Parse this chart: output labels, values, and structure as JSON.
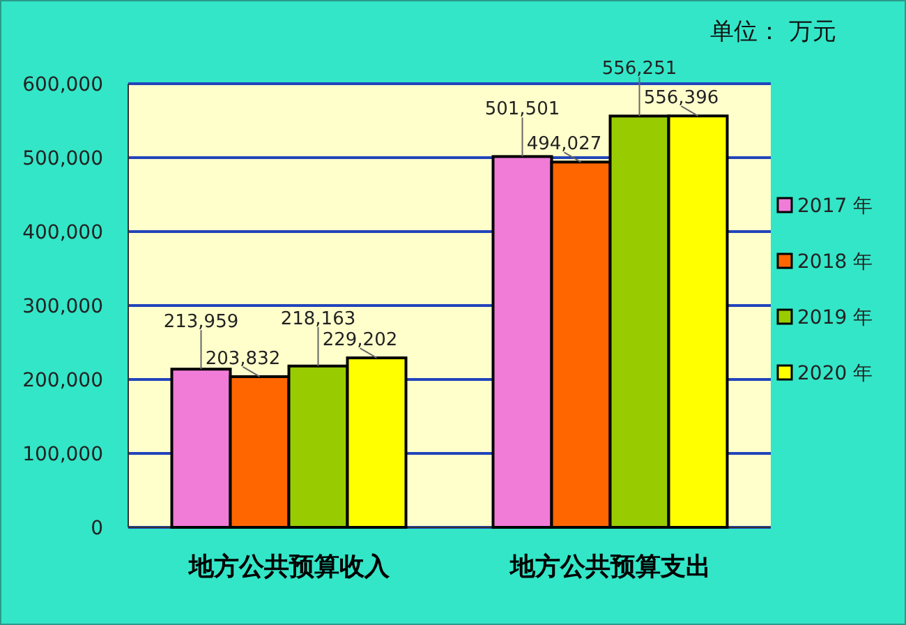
{
  "chart_data": {
    "type": "bar",
    "categories": [
      "地方公共预算收入",
      "地方公共预算支出"
    ],
    "series": [
      {
        "name": "2017 年",
        "color": "#f07cd8",
        "values": [
          213959,
          501501
        ],
        "value_labels": [
          "213,959",
          "501,501"
        ]
      },
      {
        "name": "2018 年",
        "color": "#ff6600",
        "values": [
          203832,
          494027
        ],
        "value_labels": [
          "203,832",
          "494,027"
        ]
      },
      {
        "name": "2019 年",
        "color": "#99cc00",
        "values": [
          218163,
          556251
        ],
        "value_labels": [
          "218,163",
          "556,251"
        ]
      },
      {
        "name": "2020 年",
        "color": "#ffff00",
        "values": [
          229202,
          556396
        ],
        "value_labels": [
          "229,202",
          "556,396"
        ]
      }
    ],
    "ylim": [
      0,
      600000
    ],
    "yticks": [
      0,
      {
        "value": 100000,
        "label": "100,000"
      },
      {
        "value": 200000,
        "label": "200,000"
      },
      {
        "value": 300000,
        "label": "300,000"
      },
      {
        "value": 400000,
        "label": "400,000"
      },
      {
        "value": 500000,
        "label": "500,000"
      },
      {
        "value": 600000,
        "label": "600,000"
      }
    ],
    "grid": "y",
    "legend": "right",
    "annotations": [
      "单位： 万元"
    ]
  }
}
